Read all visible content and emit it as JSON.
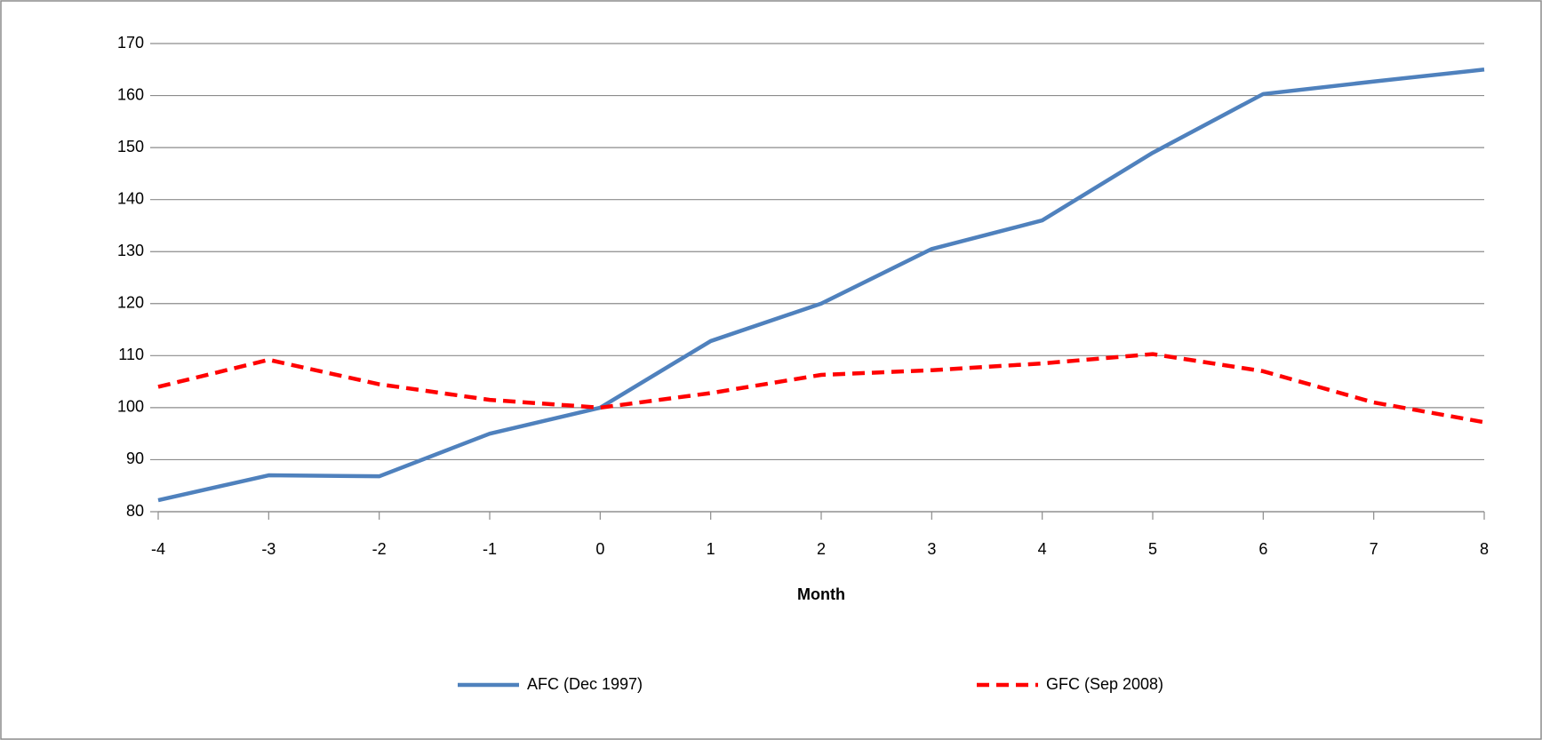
{
  "chart_data": {
    "type": "line",
    "x_label": "Month",
    "x": [
      -4,
      -3,
      -2,
      -1,
      0,
      1,
      2,
      3,
      4,
      5,
      6,
      7,
      8
    ],
    "series": [
      {
        "name": "AFC (Dec 1997)",
        "color": "#4f81bd",
        "dashed": false,
        "values": [
          82.2,
          87,
          86.8,
          95,
          100,
          112.8,
          120,
          130.5,
          136,
          149,
          160.3,
          162.7,
          165
        ]
      },
      {
        "name": "GFC (Sep 2008)",
        "color": "#ff0000",
        "dashed": true,
        "values": [
          104,
          109.2,
          104.5,
          101.5,
          100,
          102.8,
          106.3,
          107.2,
          108.5,
          110.3,
          107,
          101,
          97.2
        ]
      }
    ],
    "xlim": [
      -4,
      8
    ],
    "xticks": [
      -4,
      -3,
      -2,
      -1,
      0,
      1,
      2,
      3,
      4,
      5,
      6,
      7,
      8
    ],
    "ylim": [
      80,
      170
    ],
    "yticks": [
      80,
      90,
      100,
      110,
      120,
      130,
      140,
      150,
      160,
      170
    ],
    "grid": true,
    "legend": "bottom"
  }
}
